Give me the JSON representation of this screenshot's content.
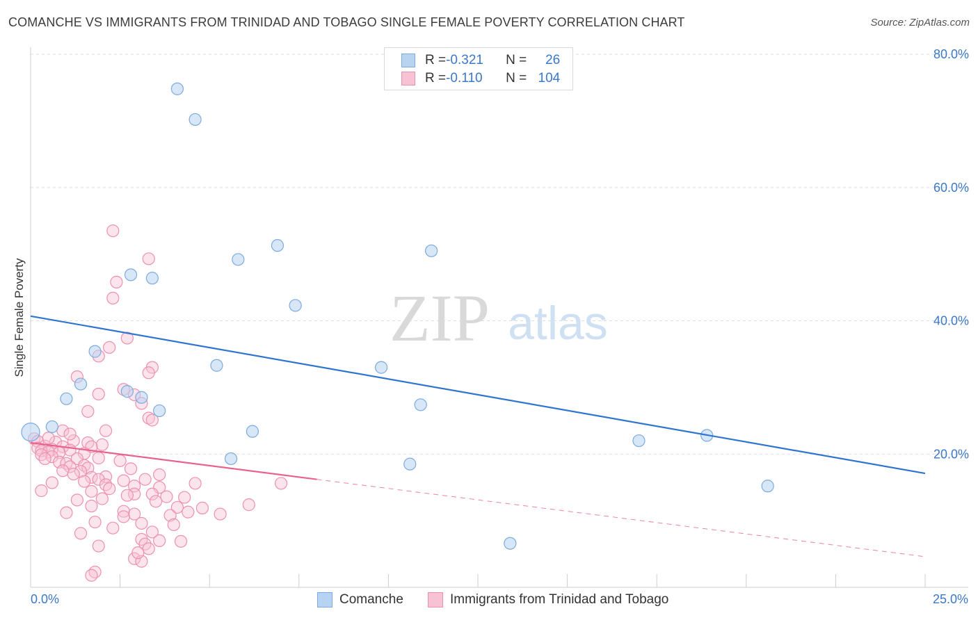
{
  "title": "COMANCHE VS IMMIGRANTS FROM TRINIDAD AND TOBAGO SINGLE FEMALE POVERTY CORRELATION CHART",
  "source": "Source: ZipAtlas.com",
  "watermark": {
    "zip": "ZIP",
    "atlas": "atlas"
  },
  "legend_top": {
    "rows": [
      {
        "r_label": "R = ",
        "r_value": "-0.321",
        "n_label": "N = ",
        "n_value": "26"
      },
      {
        "r_label": "R = ",
        "r_value": "-0.110",
        "n_label": "N = ",
        "n_value": "104"
      }
    ]
  },
  "colors": {
    "comanche_fill": "#b8d3f2",
    "comanche_stroke": "#7aaae0",
    "comanche_line": "#2f74d0",
    "trinidad_fill": "#f7c3d4",
    "trinidad_stroke": "#ee8fb0",
    "trinidad_line": "#e8628f",
    "axis_text": "#3a78c9",
    "grid": "#dddddd"
  },
  "chart_data": {
    "type": "scatter",
    "title": "COMANCHE VS IMMIGRANTS FROM TRINIDAD AND TOBAGO SINGLE FEMALE POVERTY CORRELATION CHART",
    "xlabel": "",
    "ylabel": "Single Female Poverty",
    "xlim": [
      0,
      25
    ],
    "ylim": [
      0,
      82
    ],
    "x_tick_labels": [
      "0.0%",
      "25.0%"
    ],
    "y_ticks": [
      20,
      40,
      60,
      80
    ],
    "y_tick_labels": [
      "20.0%",
      "40.0%",
      "60.0%",
      "80.0%"
    ],
    "legend_position": "bottom",
    "series": [
      {
        "name": "Comanche",
        "r": -0.321,
        "n": 26,
        "points": [
          [
            4.1,
            74.8
          ],
          [
            4.6,
            70.2
          ],
          [
            6.9,
            51.3
          ],
          [
            11.2,
            50.5
          ],
          [
            5.8,
            49.2
          ],
          [
            2.8,
            46.9
          ],
          [
            3.4,
            46.4
          ],
          [
            7.4,
            42.3
          ],
          [
            1.8,
            35.4
          ],
          [
            5.2,
            33.3
          ],
          [
            9.8,
            33.0
          ],
          [
            1.4,
            30.5
          ],
          [
            2.7,
            29.4
          ],
          [
            3.1,
            28.5
          ],
          [
            1.0,
            28.3
          ],
          [
            10.9,
            27.4
          ],
          [
            3.6,
            26.5
          ],
          [
            0.6,
            24.1
          ],
          [
            0.0,
            23.3
          ],
          [
            6.2,
            23.4
          ],
          [
            17.0,
            22.0
          ],
          [
            18.9,
            22.8
          ],
          [
            5.6,
            19.3
          ],
          [
            10.6,
            18.5
          ],
          [
            20.6,
            15.2
          ],
          [
            13.4,
            6.6
          ]
        ],
        "trend": {
          "x": [
            0,
            25
          ],
          "y": [
            40.7,
            17.1
          ]
        }
      },
      {
        "name": "Immigrants from Trinidad and Tobago",
        "r": -0.11,
        "n": 104,
        "points": [
          [
            2.3,
            53.5
          ],
          [
            3.3,
            49.3
          ],
          [
            2.4,
            45.8
          ],
          [
            2.3,
            43.4
          ],
          [
            2.7,
            37.4
          ],
          [
            2.2,
            36.0
          ],
          [
            1.9,
            34.7
          ],
          [
            3.4,
            33.0
          ],
          [
            3.3,
            32.2
          ],
          [
            1.3,
            31.6
          ],
          [
            2.6,
            29.7
          ],
          [
            1.9,
            29.0
          ],
          [
            2.9,
            28.9
          ],
          [
            3.1,
            27.6
          ],
          [
            1.6,
            26.4
          ],
          [
            3.3,
            25.4
          ],
          [
            3.4,
            25.1
          ],
          [
            2.1,
            23.5
          ],
          [
            0.9,
            23.5
          ],
          [
            0.1,
            22.3
          ],
          [
            0.2,
            21.9
          ],
          [
            1.2,
            22.0
          ],
          [
            0.7,
            21.8
          ],
          [
            1.6,
            21.7
          ],
          [
            2.0,
            21.4
          ],
          [
            0.4,
            21.2
          ],
          [
            0.9,
            21.1
          ],
          [
            1.7,
            21.1
          ],
          [
            0.2,
            20.9
          ],
          [
            0.6,
            20.7
          ],
          [
            1.1,
            20.6
          ],
          [
            0.3,
            20.5
          ],
          [
            0.5,
            20.3
          ],
          [
            0.8,
            20.2
          ],
          [
            1.5,
            20.1
          ],
          [
            0.3,
            19.9
          ],
          [
            0.6,
            19.6
          ],
          [
            1.9,
            19.4
          ],
          [
            1.3,
            19.3
          ],
          [
            0.4,
            19.3
          ],
          [
            2.5,
            19.0
          ],
          [
            0.8,
            18.8
          ],
          [
            1.0,
            18.6
          ],
          [
            1.5,
            18.3
          ],
          [
            1.1,
            18.1
          ],
          [
            1.6,
            17.9
          ],
          [
            2.8,
            17.8
          ],
          [
            0.9,
            17.5
          ],
          [
            1.4,
            17.4
          ],
          [
            1.2,
            17.0
          ],
          [
            3.6,
            16.9
          ],
          [
            2.1,
            16.6
          ],
          [
            1.7,
            16.5
          ],
          [
            1.9,
            16.2
          ],
          [
            3.2,
            16.2
          ],
          [
            2.6,
            16.0
          ],
          [
            1.5,
            15.9
          ],
          [
            0.6,
            15.7
          ],
          [
            4.6,
            15.6
          ],
          [
            7.0,
            15.6
          ],
          [
            2.1,
            15.4
          ],
          [
            2.9,
            15.2
          ],
          [
            3.6,
            15.0
          ],
          [
            2.2,
            14.8
          ],
          [
            0.3,
            14.5
          ],
          [
            1.7,
            14.4
          ],
          [
            2.9,
            14.0
          ],
          [
            3.4,
            14.0
          ],
          [
            2.7,
            13.8
          ],
          [
            3.8,
            13.6
          ],
          [
            4.3,
            13.5
          ],
          [
            2.0,
            13.3
          ],
          [
            1.3,
            13.1
          ],
          [
            3.5,
            12.9
          ],
          [
            6.1,
            12.4
          ],
          [
            1.7,
            12.2
          ],
          [
            4.1,
            12.0
          ],
          [
            4.8,
            11.9
          ],
          [
            2.6,
            11.4
          ],
          [
            4.4,
            11.3
          ],
          [
            1.0,
            11.2
          ],
          [
            2.9,
            11.0
          ],
          [
            5.3,
            11.0
          ],
          [
            3.9,
            10.8
          ],
          [
            2.6,
            10.6
          ],
          [
            1.8,
            9.8
          ],
          [
            3.1,
            9.6
          ],
          [
            4.0,
            9.4
          ],
          [
            2.3,
            8.9
          ],
          [
            3.4,
            8.3
          ],
          [
            1.4,
            8.1
          ],
          [
            3.1,
            7.2
          ],
          [
            3.6,
            7.0
          ],
          [
            4.2,
            6.9
          ],
          [
            3.2,
            6.5
          ],
          [
            1.9,
            6.2
          ],
          [
            3.3,
            5.8
          ],
          [
            2.9,
            4.3
          ],
          [
            3.1,
            3.9
          ],
          [
            1.8,
            2.3
          ],
          [
            1.7,
            1.8
          ],
          [
            3.0,
            5.2
          ],
          [
            0.5,
            22.4
          ],
          [
            1.1,
            23.0
          ]
        ],
        "trend_solid": {
          "x": [
            0,
            8.0
          ],
          "y": [
            21.7,
            16.2
          ]
        },
        "trend_dashed": {
          "x": [
            8.0,
            25
          ],
          "y": [
            16.2,
            4.6
          ]
        }
      }
    ]
  },
  "bottom_legend": {
    "items": [
      {
        "label": "Comanche"
      },
      {
        "label": "Immigrants from Trinidad and Tobago"
      }
    ]
  }
}
